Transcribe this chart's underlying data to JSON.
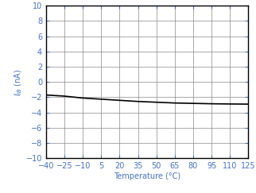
{
  "title": "",
  "xlabel": "Temperature (°C)",
  "xlim": [
    -40,
    125
  ],
  "ylim": [
    -10,
    10
  ],
  "xticks": [
    -40,
    -25,
    -10,
    5,
    20,
    35,
    50,
    65,
    80,
    95,
    110,
    125
  ],
  "yticks": [
    -10,
    -8,
    -6,
    -4,
    -2,
    0,
    2,
    4,
    6,
    8,
    10
  ],
  "line_color": "#000000",
  "line_width": 1.2,
  "x_data": [
    -40,
    -25,
    -10,
    5,
    20,
    35,
    50,
    65,
    80,
    95,
    110,
    125
  ],
  "y_data": [
    -1.7,
    -1.85,
    -2.1,
    -2.25,
    -2.4,
    -2.55,
    -2.65,
    -2.75,
    -2.8,
    -2.85,
    -2.88,
    -2.9
  ],
  "background_color": "#ffffff",
  "grid_color": "#888888",
  "xlabel_fontsize": 7,
  "ylabel_fontsize": 7,
  "tick_fontsize": 7,
  "tick_color": "#4472c4",
  "ylabel_color": "#4472c4"
}
